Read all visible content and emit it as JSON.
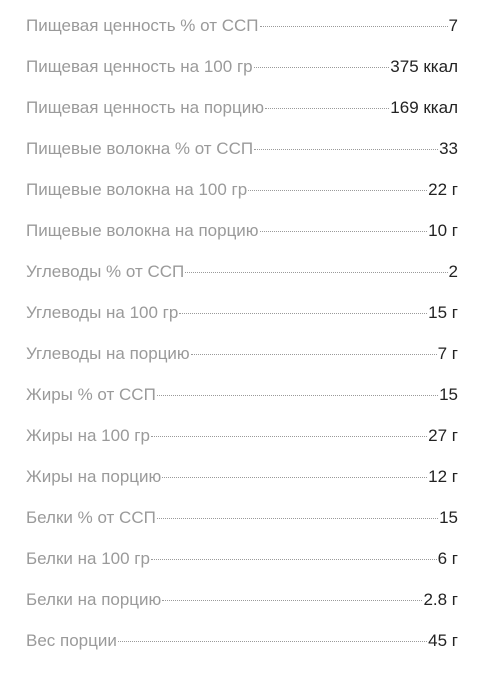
{
  "nutrition": {
    "items": [
      {
        "label": "Пищевая ценность % от ССП",
        "value": "7"
      },
      {
        "label": "Пищевая ценность на 100 гр",
        "value": "375 ккал"
      },
      {
        "label": "Пищевая ценность на порцию",
        "value": "169 ккал"
      },
      {
        "label": "Пищевые волокна % от ССП",
        "value": "33"
      },
      {
        "label": "Пищевые волокна на 100 гр",
        "value": "22 г"
      },
      {
        "label": "Пищевые волокна на порцию",
        "value": "10 г"
      },
      {
        "label": "Углеводы % от ССП",
        "value": "2"
      },
      {
        "label": "Углеводы на 100 гр",
        "value": "15 г"
      },
      {
        "label": "Углеводы на порцию",
        "value": "7 г"
      },
      {
        "label": "Жиры % от ССП",
        "value": "15"
      },
      {
        "label": "Жиры на 100 гр",
        "value": "27 г"
      },
      {
        "label": "Жиры на порцию",
        "value": "12 г"
      },
      {
        "label": "Белки % от ССП",
        "value": "15"
      },
      {
        "label": "Белки на 100 гр",
        "value": "6 г"
      },
      {
        "label": "Белки на порцию",
        "value": "2.8 г"
      },
      {
        "label": "Вес порции",
        "value": "45 г"
      }
    ]
  }
}
